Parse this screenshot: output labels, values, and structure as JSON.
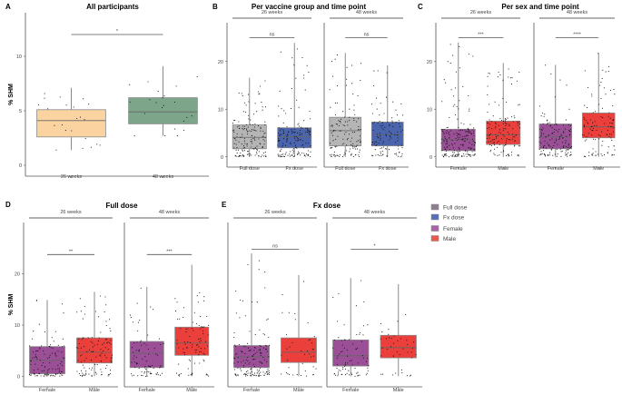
{
  "colors": {
    "week26": "#fbd3a0",
    "week48": "#7da58a",
    "full_dose": "#b5b5b5",
    "fx_dose": "#4a64ad",
    "female": "#9a4f96",
    "male": "#ea3f3a",
    "legend_full_dose": "#8e7f8e",
    "legend_fx_dose": "#5670b8",
    "legend_female": "#a864a6",
    "legend_male": "#ea5a4a"
  },
  "legend": {
    "items": [
      {
        "label": "Full dose",
        "color_key": "legend_full_dose"
      },
      {
        "label": "Fx dose",
        "color_key": "legend_fx_dose"
      },
      {
        "label": "Female",
        "color_key": "legend_female"
      },
      {
        "label": "Male",
        "color_key": "legend_male"
      }
    ]
  },
  "chart_data": [
    {
      "panel": "A",
      "type": "box",
      "title": "All participants",
      "ylabel": "% SHM",
      "ylim": [
        -0.5,
        13.5
      ],
      "yticks": [
        0,
        5,
        10
      ],
      "facets": [
        {
          "label": "",
          "groups": [
            {
              "category": "26 weeks",
              "color_key": "week26",
              "q1": 2.6,
              "median": 4.1,
              "q3": 5.1,
              "whisker_low": 1.4,
              "whisker_high": 7.1,
              "n_points": 22
            },
            {
              "category": "48 weeks",
              "color_key": "week48",
              "q1": 3.8,
              "median": 4.9,
              "q3": 6.2,
              "whisker_low": 2.7,
              "whisker_high": 9.1,
              "n_points": 22
            }
          ],
          "comparison": {
            "label": "*",
            "y": 12.0
          }
        }
      ]
    },
    {
      "panel": "B",
      "type": "box",
      "title": "Per vaccine group and time point",
      "ylabel": "",
      "ylim": [
        -1,
        27
      ],
      "yticks": [
        0,
        10,
        20
      ],
      "facets": [
        {
          "label": "26 weeks",
          "groups": [
            {
              "category": "Full dose",
              "color_key": "full_dose",
              "q1": 1.7,
              "median": 4.1,
              "q3": 6.7,
              "whisker_low": 0,
              "whisker_high": 16.6,
              "n_points": 160
            },
            {
              "category": "Fx dose",
              "color_key": "fx_dose",
              "q1": 1.9,
              "median": 4.2,
              "q3": 6.1,
              "whisker_low": 0,
              "whisker_high": 23.9,
              "n_points": 160
            }
          ],
          "comparison": {
            "label": "ns",
            "y": 25.0
          }
        },
        {
          "label": "48 weeks",
          "groups": [
            {
              "category": "Full dose",
              "color_key": "full_dose",
              "q1": 2.3,
              "median": 5.5,
              "q3": 8.3,
              "whisker_low": 0,
              "whisker_high": 21.8,
              "n_points": 130
            },
            {
              "category": "Fx dose",
              "color_key": "fx_dose",
              "q1": 2.3,
              "median": 4.6,
              "q3": 7.3,
              "whisker_low": 0,
              "whisker_high": 19.2,
              "n_points": 110
            }
          ],
          "comparison": {
            "label": "ns",
            "y": 25.0
          }
        }
      ]
    },
    {
      "panel": "C",
      "type": "box",
      "title": "Per sex and time point",
      "ylabel": "",
      "ylim": [
        -1,
        27
      ],
      "yticks": [
        0,
        10,
        20
      ],
      "facets": [
        {
          "label": "26 weeks",
          "groups": [
            {
              "category": "Female",
              "color_key": "female",
              "q1": 1.3,
              "median": 3.6,
              "q3": 5.8,
              "whisker_low": 0,
              "whisker_high": 24.0,
              "n_points": 200
            },
            {
              "category": "Male",
              "color_key": "male",
              "q1": 2.6,
              "median": 4.6,
              "q3": 7.5,
              "whisker_low": 0,
              "whisker_high": 19.7,
              "n_points": 140
            }
          ],
          "comparison": {
            "label": "***",
            "y": 25.0
          }
        },
        {
          "label": "48 weeks",
          "groups": [
            {
              "category": "Female",
              "color_key": "female",
              "q1": 1.7,
              "median": 4.2,
              "q3": 6.9,
              "whisker_low": 0,
              "whisker_high": 19.3,
              "n_points": 140
            },
            {
              "category": "Male",
              "color_key": "male",
              "q1": 4.0,
              "median": 6.3,
              "q3": 9.2,
              "whisker_low": 0,
              "whisker_high": 21.8,
              "n_points": 110
            }
          ],
          "comparison": {
            "label": "****",
            "y": 25.0
          }
        }
      ]
    },
    {
      "panel": "D",
      "type": "box",
      "title": "Full dose",
      "ylabel": "% SHM",
      "ylim": [
        -1,
        29
      ],
      "yticks": [
        0,
        10,
        20
      ],
      "facets": [
        {
          "label": "26 weeks",
          "groups": [
            {
              "category": "Female",
              "color_key": "female",
              "q1": 0.5,
              "median": 3.1,
              "q3": 5.8,
              "whisker_low": 0,
              "whisker_high": 14.9,
              "n_points": 110
            },
            {
              "category": "Male",
              "color_key": "male",
              "q1": 2.6,
              "median": 4.7,
              "q3": 7.5,
              "whisker_low": 0,
              "whisker_high": 16.5,
              "n_points": 110
            }
          ],
          "comparison": {
            "label": "**",
            "y": 23.8
          }
        },
        {
          "label": "48 weeks",
          "groups": [
            {
              "category": "Female",
              "color_key": "female",
              "q1": 1.7,
              "median": 4.5,
              "q3": 6.8,
              "whisker_low": 0,
              "whisker_high": 17.5,
              "n_points": 80
            },
            {
              "category": "Male",
              "color_key": "male",
              "q1": 4.1,
              "median": 6.5,
              "q3": 9.6,
              "whisker_low": 0,
              "whisker_high": 21.8,
              "n_points": 90
            }
          ],
          "comparison": {
            "label": "***",
            "y": 23.8
          }
        }
      ]
    },
    {
      "panel": "E",
      "type": "box",
      "title": "Fx dose",
      "ylabel": "",
      "ylim": [
        -1,
        29
      ],
      "yticks": [],
      "facets": [
        {
          "label": "26 weeks",
          "groups": [
            {
              "category": "Female",
              "color_key": "female",
              "q1": 1.7,
              "median": 3.8,
              "q3": 6.0,
              "whisker_low": 0,
              "whisker_high": 24.0,
              "n_points": 150
            },
            {
              "category": "Male",
              "color_key": "male",
              "q1": 2.7,
              "median": 4.7,
              "q3": 7.5,
              "whisker_low": 0,
              "whisker_high": 19.8,
              "n_points": 40
            }
          ],
          "comparison": {
            "label": "ns",
            "y": 24.8
          }
        },
        {
          "label": "48 weeks",
          "groups": [
            {
              "category": "Female",
              "color_key": "female",
              "q1": 2.0,
              "median": 4.0,
              "q3": 7.1,
              "whisker_low": 0,
              "whisker_high": 19.2,
              "n_points": 80
            },
            {
              "category": "Male",
              "color_key": "male",
              "q1": 3.6,
              "median": 5.6,
              "q3": 8.0,
              "whisker_low": 0,
              "whisker_high": 18.0,
              "n_points": 40
            }
          ],
          "comparison": {
            "label": "*",
            "y": 24.8
          }
        }
      ]
    }
  ]
}
